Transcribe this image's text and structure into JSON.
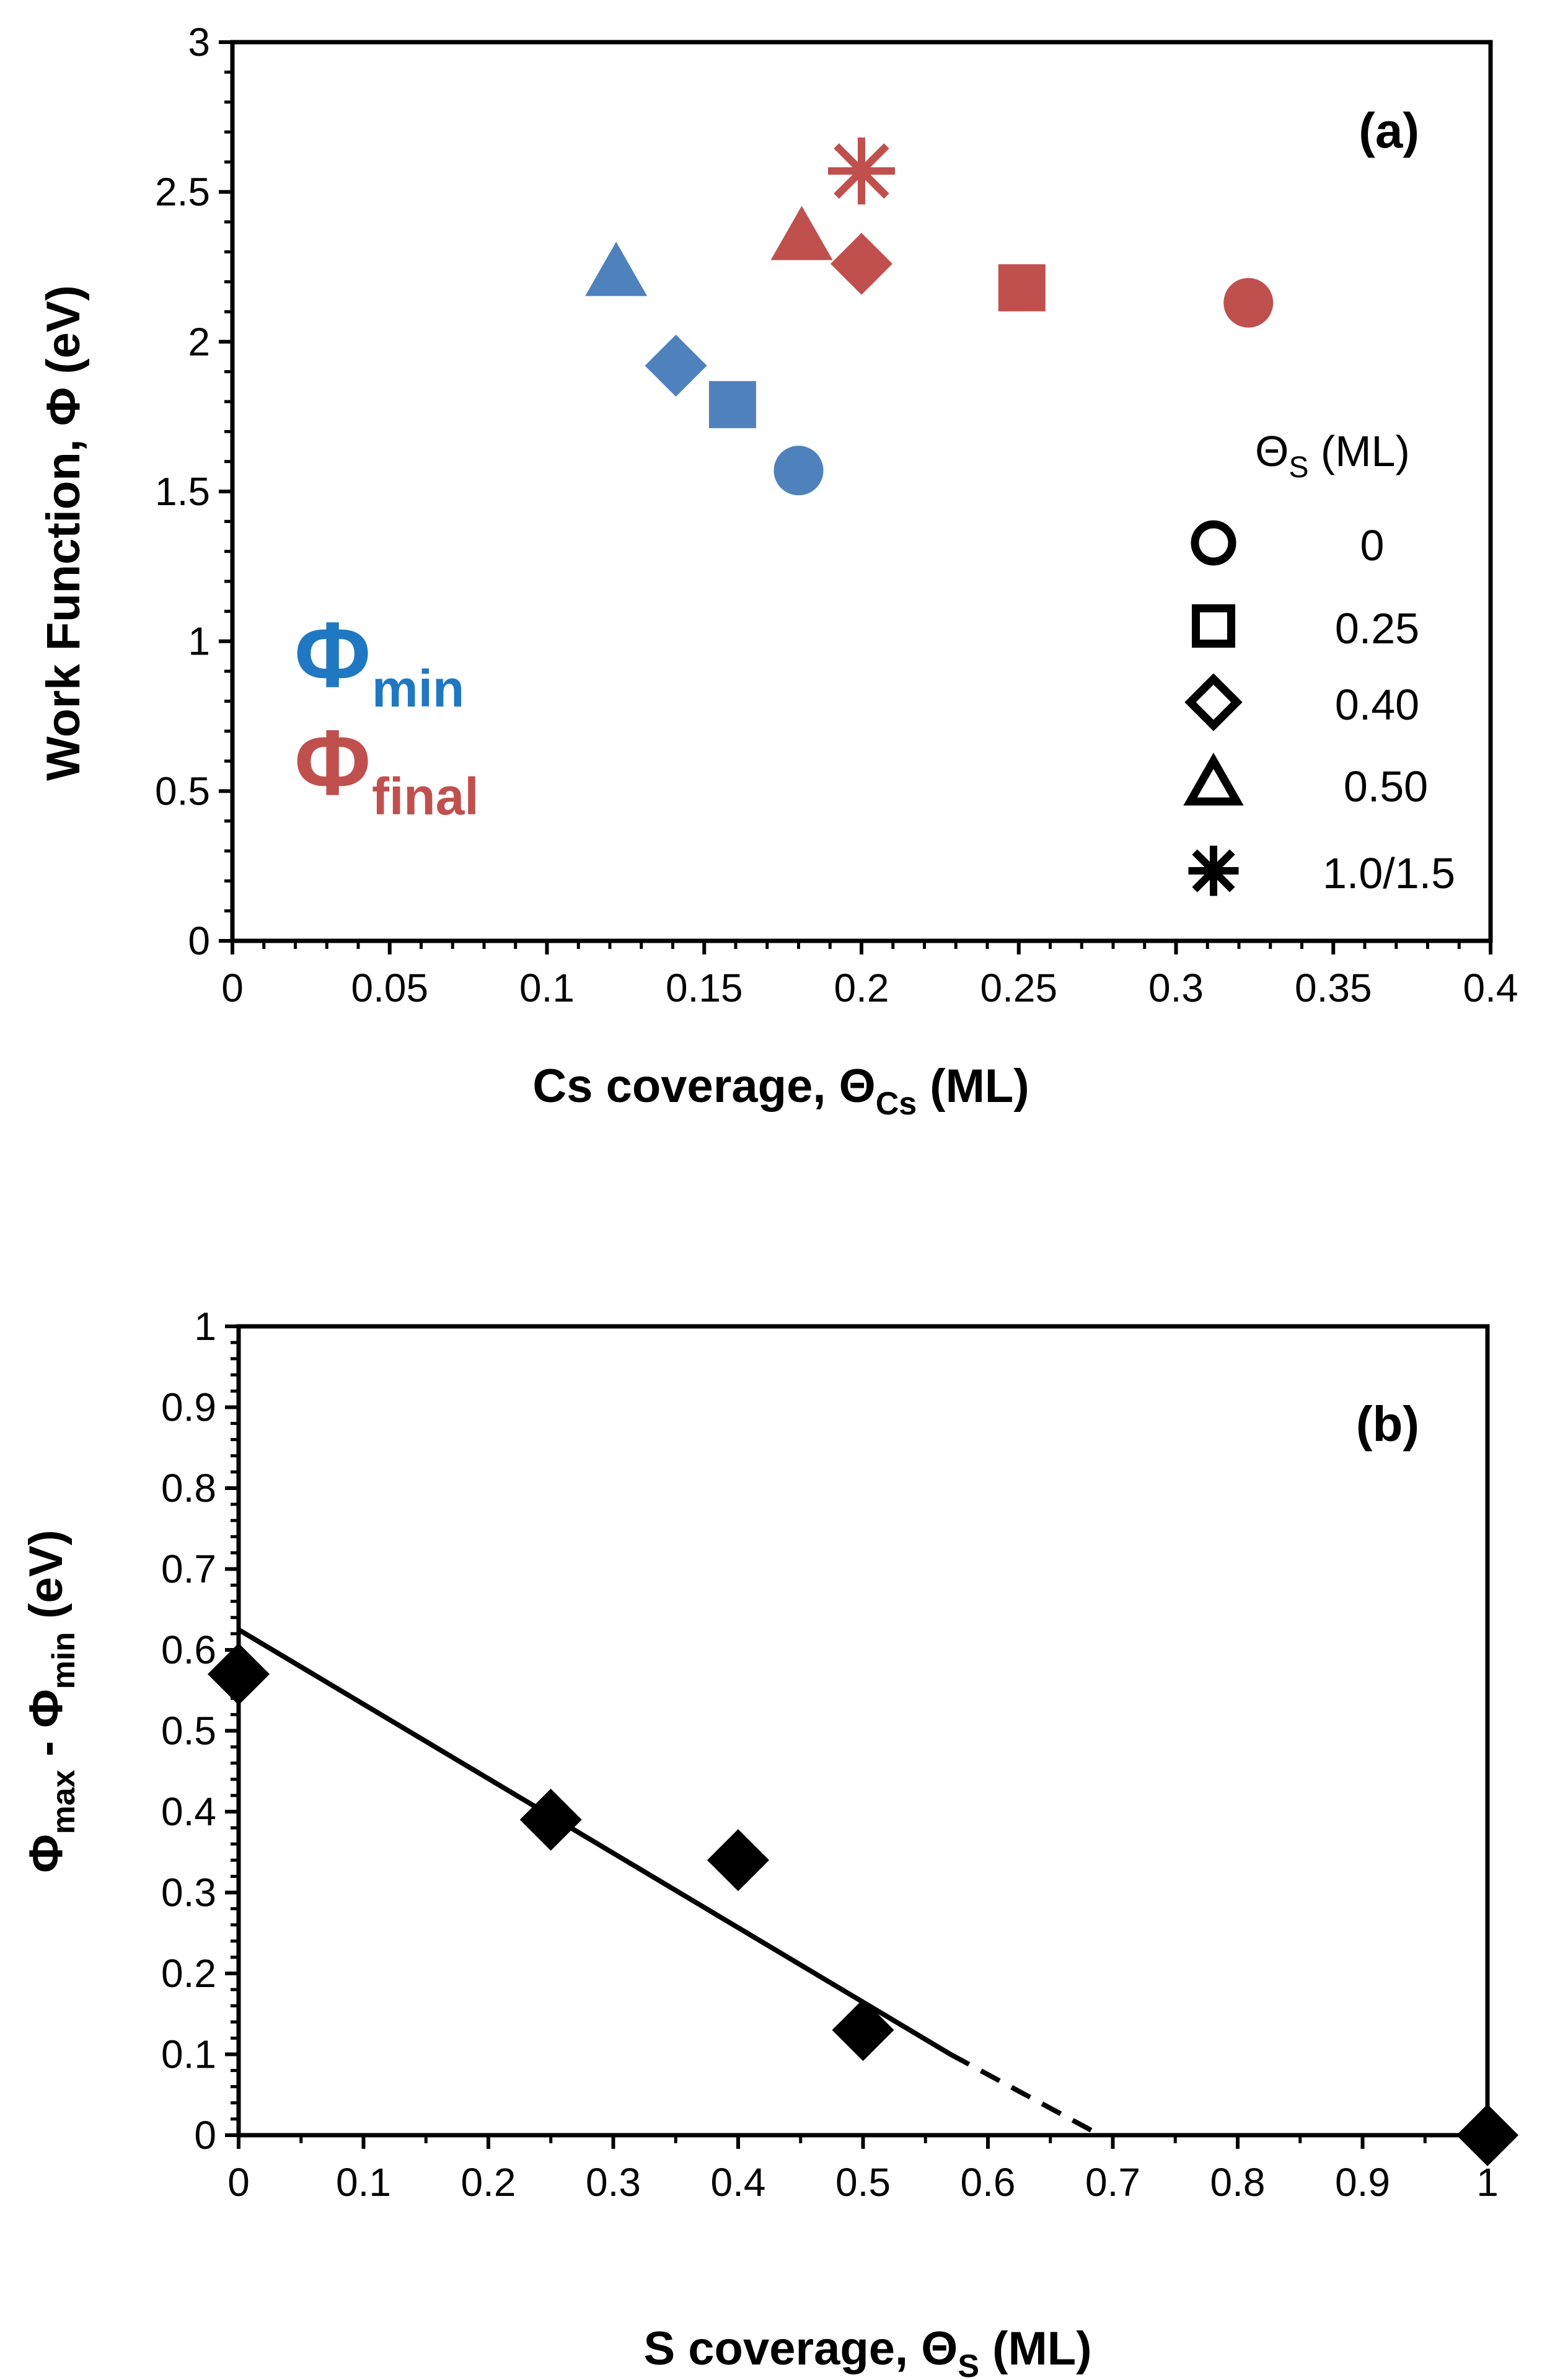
{
  "chart_data": [
    {
      "panel": "(a)",
      "type": "scatter",
      "xlabel": "Cs coverage, Θ_Cs (ML)",
      "xlabel_main": "Cs coverage, Θ",
      "xlabel_sub": "Cs",
      "xlabel_tail": " (ML)",
      "ylabel": "Work Function, Φ (eV)",
      "xlim": [
        0,
        0.4
      ],
      "ylim": [
        0,
        3
      ],
      "xticks": [
        0,
        0.05,
        0.1,
        0.15,
        0.2,
        0.25,
        0.3,
        0.35,
        0.4
      ],
      "yticks": [
        0,
        0.5,
        1,
        1.5,
        2,
        2.5,
        3
      ],
      "xtick_labels": [
        "0",
        "0.05",
        "0.1",
        "0.15",
        "0.2",
        "0.25",
        "0.3",
        "0.35",
        "0.4"
      ],
      "ytick_labels": [
        "0",
        "0.5",
        "1",
        "1.5",
        "2",
        "2.5",
        "3"
      ],
      "series": [
        {
          "name": "Φmin",
          "color": "#4F81BD",
          "points": [
            {
              "x": 0.18,
              "y": 1.57,
              "marker": "circle",
              "theta_s": "0"
            },
            {
              "x": 0.159,
              "y": 1.79,
              "marker": "square",
              "theta_s": "0.25"
            },
            {
              "x": 0.141,
              "y": 1.92,
              "marker": "diamond",
              "theta_s": "0.40"
            },
            {
              "x": 0.122,
              "y": 2.23,
              "marker": "triangle",
              "theta_s": "0.50"
            }
          ]
        },
        {
          "name": "Φfinal",
          "color": "#C0504D",
          "points": [
            {
              "x": 0.323,
              "y": 2.13,
              "marker": "circle",
              "theta_s": "0"
            },
            {
              "x": 0.251,
              "y": 2.18,
              "marker": "square",
              "theta_s": "0.25"
            },
            {
              "x": 0.2,
              "y": 2.26,
              "marker": "diamond",
              "theta_s": "0.40"
            },
            {
              "x": 0.181,
              "y": 2.35,
              "marker": "triangle",
              "theta_s": "0.50"
            },
            {
              "x": 0.2,
              "y": 2.57,
              "marker": "asterisk",
              "theta_s": "1.0/1.5"
            }
          ]
        }
      ],
      "series_labels": [
        {
          "main": "Φ",
          "sub": "min",
          "color": "#1F78C1"
        },
        {
          "main": "Φ",
          "sub": "final",
          "color": "#C0504D"
        }
      ],
      "legend": {
        "title_main": "Θ",
        "title_sub": "S",
        "title_tail": " (ML)",
        "entries": [
          {
            "marker": "circle",
            "label": "0"
          },
          {
            "marker": "square",
            "label": "0.25"
          },
          {
            "marker": "diamond",
            "label": "0.40"
          },
          {
            "marker": "triangle",
            "label": "0.50"
          },
          {
            "marker": "asterisk",
            "label": "1.0/1.5"
          }
        ]
      }
    },
    {
      "panel": "(b)",
      "type": "scatter",
      "xlabel": "S coverage, Θ_S (ML)",
      "xlabel_main": "S coverage, Θ",
      "xlabel_sub": "S",
      "xlabel_tail": "  (ML)",
      "ylabel": "Φ_max - Φ_min (eV)",
      "ylabel_parts": {
        "a": "Φ",
        "a_sub": "max",
        "mid": " - Φ",
        "b_sub": "min",
        "tail": " (eV)"
      },
      "xlim": [
        0,
        1
      ],
      "ylim": [
        0,
        1
      ],
      "xticks": [
        0,
        0.1,
        0.2,
        0.3,
        0.4,
        0.5,
        0.6,
        0.7,
        0.8,
        0.9,
        1
      ],
      "yticks": [
        0,
        0.1,
        0.2,
        0.3,
        0.4,
        0.5,
        0.6,
        0.7,
        0.8,
        0.9,
        1
      ],
      "xtick_labels": [
        "0",
        "0.1",
        "0.2",
        "0.3",
        "0.4",
        "0.5",
        "0.6",
        "0.7",
        "0.8",
        "0.9",
        "1"
      ],
      "ytick_labels": [
        "0",
        "0.1",
        "0.2",
        "0.3",
        "0.4",
        "0.5",
        "0.6",
        "0.7",
        "0.8",
        "0.9",
        "1"
      ],
      "color": "#000000",
      "points": [
        {
          "x": 0.0,
          "y": 0.57
        },
        {
          "x": 0.25,
          "y": 0.39
        },
        {
          "x": 0.4,
          "y": 0.34
        },
        {
          "x": 0.5,
          "y": 0.13
        },
        {
          "x": 1.0,
          "y": 0.0
        }
      ],
      "fit_solid": [
        [
          0.0,
          0.625
        ],
        [
          0.57,
          0.1
        ]
      ],
      "fit_dashed": [
        [
          0.57,
          0.1
        ],
        [
          0.69,
          0.0
        ]
      ]
    }
  ]
}
